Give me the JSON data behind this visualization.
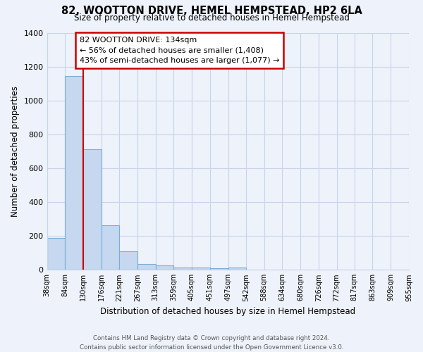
{
  "title": "82, WOOTTON DRIVE, HEMEL HEMPSTEAD, HP2 6LA",
  "subtitle": "Size of property relative to detached houses in Hemel Hempstead",
  "xlabel": "Distribution of detached houses by size in Hemel Hempstead",
  "ylabel": "Number of detached properties",
  "bar_edges": [
    38,
    84,
    130,
    176,
    221,
    267,
    313,
    359,
    405,
    451,
    497,
    542,
    588,
    634,
    680,
    726,
    772,
    817,
    863,
    909,
    955
  ],
  "bar_heights": [
    190,
    1145,
    710,
    265,
    110,
    35,
    27,
    15,
    12,
    10,
    15,
    0,
    0,
    0,
    0,
    0,
    0,
    0,
    0,
    0
  ],
  "bar_color": "#c5d8f0",
  "bar_edge_color": "#7aaed6",
  "property_line_x": 130,
  "property_line_color": "#cc0000",
  "ylim": [
    0,
    1400
  ],
  "yticks": [
    0,
    200,
    400,
    600,
    800,
    1000,
    1200,
    1400
  ],
  "annotation_title": "82 WOOTTON DRIVE: 134sqm",
  "annotation_line1": "← 56% of detached houses are smaller (1,408)",
  "annotation_line2": "43% of semi-detached houses are larger (1,077) →",
  "footer_line1": "Contains HM Land Registry data © Crown copyright and database right 2024.",
  "footer_line2": "Contains public sector information licensed under the Open Government Licence v3.0.",
  "background_color": "#eef2fa",
  "grid_color": "#c8d4e8",
  "tick_labels": [
    "38sqm",
    "84sqm",
    "130sqm",
    "176sqm",
    "221sqm",
    "267sqm",
    "313sqm",
    "359sqm",
    "405sqm",
    "451sqm",
    "497sqm",
    "542sqm",
    "588sqm",
    "634sqm",
    "680sqm",
    "726sqm",
    "772sqm",
    "817sqm",
    "863sqm",
    "909sqm",
    "955sqm"
  ]
}
